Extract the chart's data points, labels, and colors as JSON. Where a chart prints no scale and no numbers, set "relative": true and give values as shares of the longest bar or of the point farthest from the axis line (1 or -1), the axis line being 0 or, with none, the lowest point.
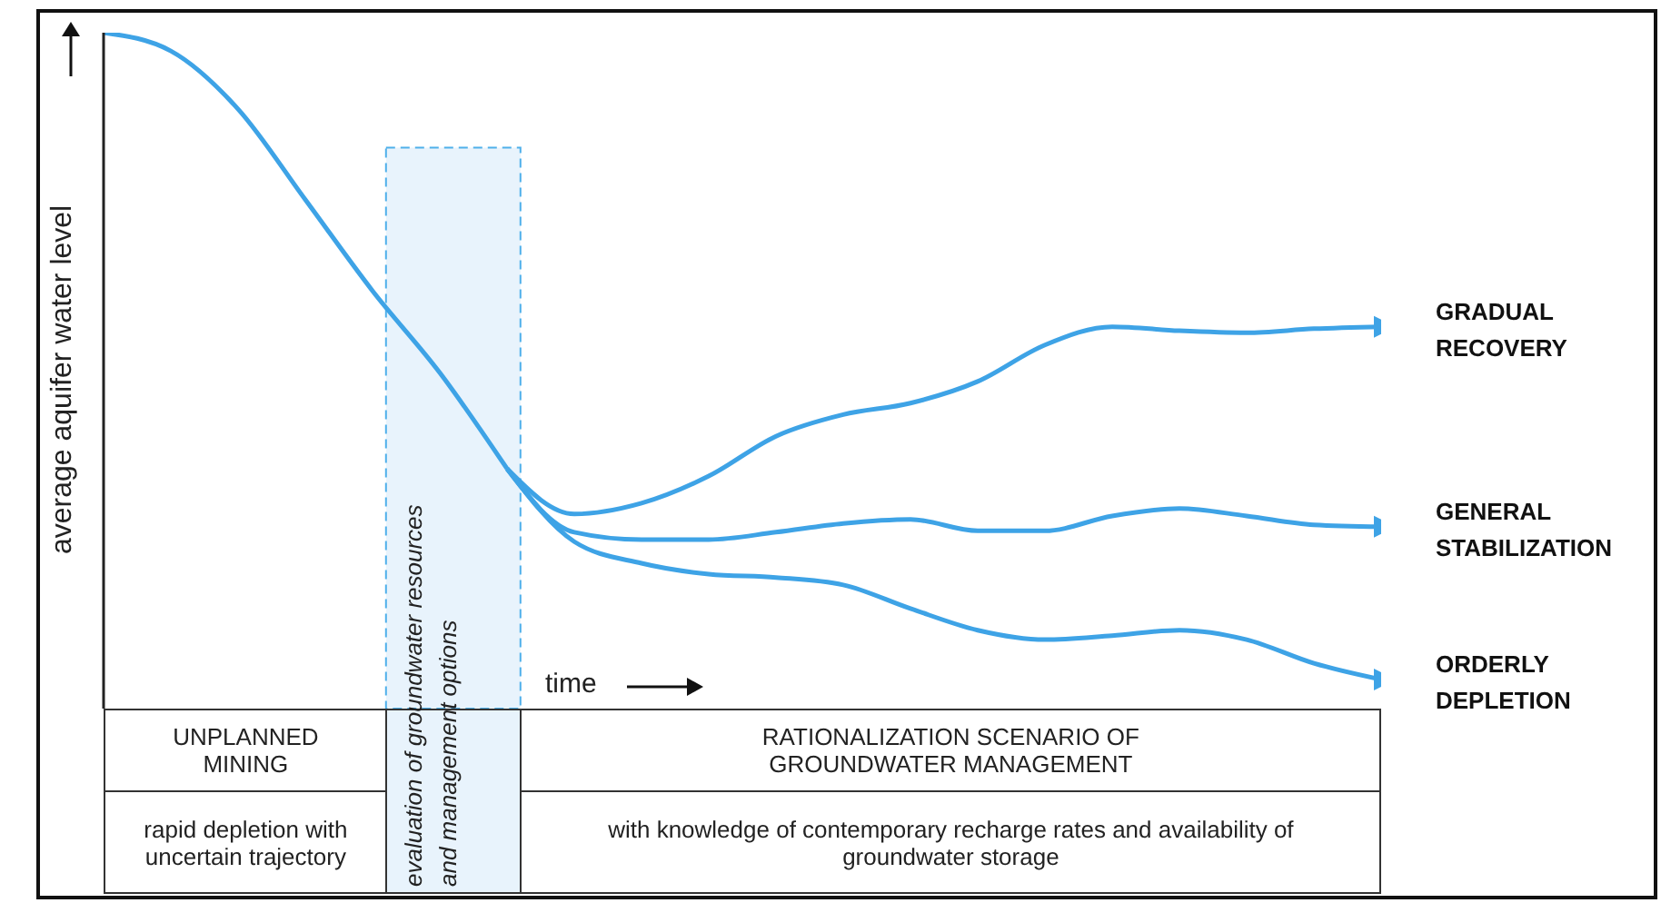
{
  "chart_data": {
    "type": "line",
    "relative": true,
    "xlabel": "time",
    "ylabel": "average aquifer water level",
    "categories": [
      null,
      null,
      null,
      null,
      null,
      null,
      null,
      null,
      null,
      null,
      null,
      null,
      null,
      null,
      null,
      null,
      null,
      null,
      null,
      null
    ],
    "series": [
      {
        "color": "#3ea3e6",
        "values": [
          1.0,
          0.973,
          0.887,
          0.753,
          0.618,
          0.497,
          0.355,
          null,
          null,
          null,
          null,
          null,
          null,
          null,
          null,
          null,
          null,
          null,
          null,
          null
        ]
      },
      {
        "name": "GRADUAL RECOVERY",
        "color": "#3ea3e6",
        "values": [
          null,
          null,
          null,
          null,
          null,
          null,
          0.355,
          0.288,
          0.304,
          0.344,
          0.403,
          0.435,
          0.452,
          0.484,
          0.538,
          0.565,
          0.559,
          0.556,
          0.562,
          0.565
        ]
      },
      {
        "name": "GENERAL STABILIZATION",
        "color": "#3ea3e6",
        "values": [
          null,
          null,
          null,
          null,
          null,
          null,
          0.355,
          0.261,
          0.25,
          0.25,
          0.261,
          0.274,
          0.28,
          0.263,
          0.263,
          0.285,
          0.296,
          0.285,
          0.272,
          0.269
        ]
      },
      {
        "name": "ORDERLY DEPLETION",
        "color": "#3ea3e6",
        "values": [
          null,
          null,
          null,
          null,
          null,
          null,
          0.355,
          0.247,
          0.215,
          0.199,
          0.194,
          0.183,
          0.148,
          0.116,
          0.102,
          0.108,
          0.116,
          0.102,
          0.067,
          0.043
        ]
      }
    ],
    "annotations": [
      "UNPLANNED MINING",
      "rapid depletion with uncertain trajectory",
      "evaluation of groundwater resources and management options",
      "RATIONALIZATION SCENARIO OF GROUNDWATER MANAGEMENT",
      "with knowledge of contemporary recharge rates and availability of groundwater storage"
    ],
    "legend": false,
    "grid": false,
    "marker": "none",
    "line_style": "solid"
  }
}
